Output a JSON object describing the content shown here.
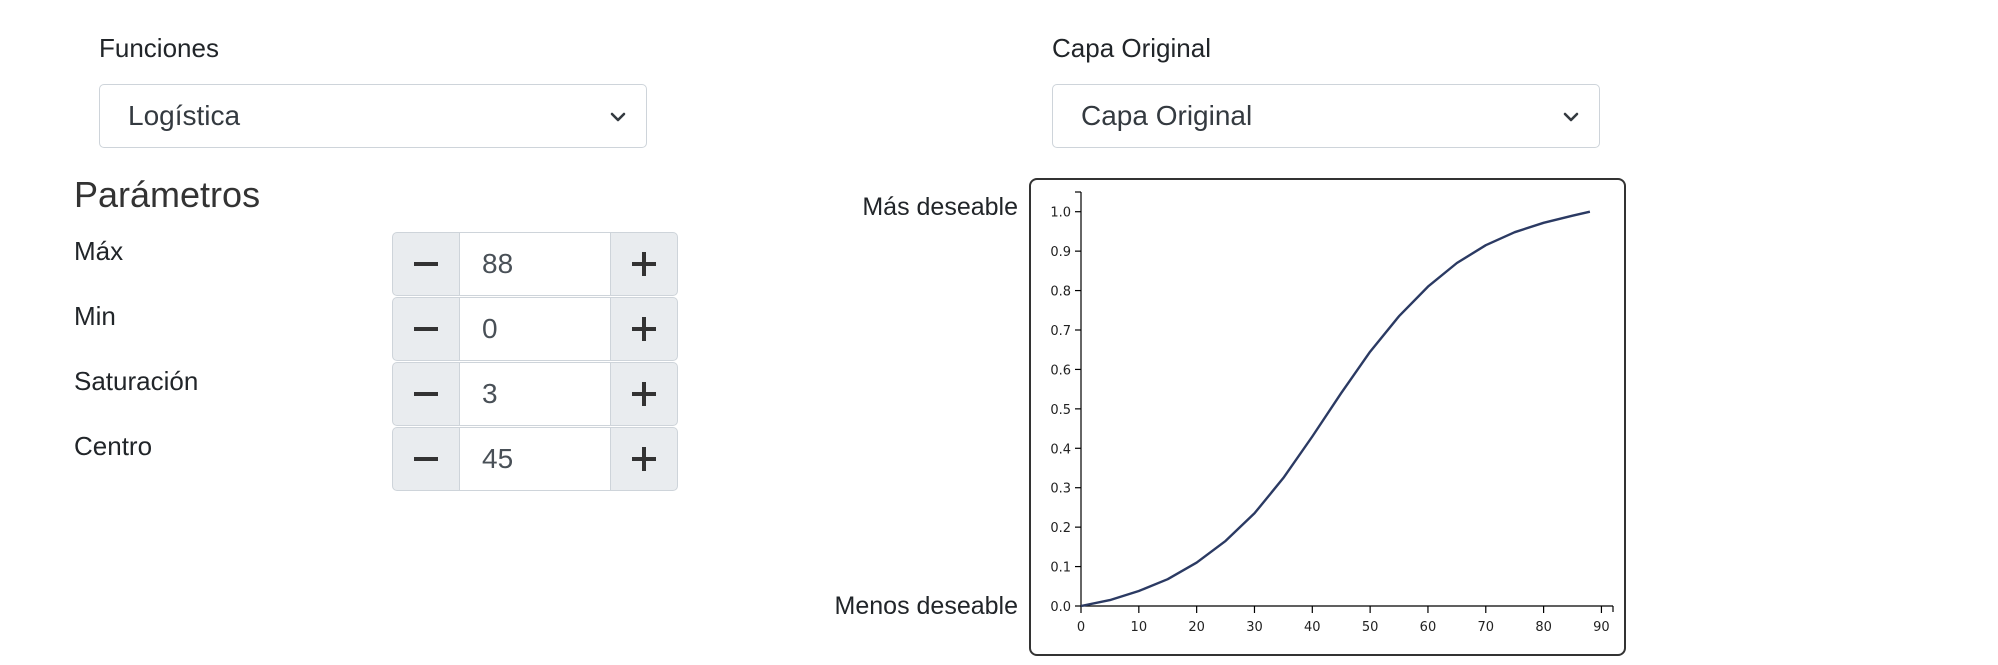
{
  "functions_panel": {
    "label": "Funciones",
    "selected": "Logística"
  },
  "layer_panel": {
    "label": "Capa Original",
    "selected": "Capa Original"
  },
  "parameters": {
    "title": "Parámetros",
    "items": [
      {
        "label": "Máx",
        "value": "88"
      },
      {
        "label": "Min",
        "value": "0"
      },
      {
        "label": "Saturación",
        "value": "3"
      },
      {
        "label": "Centro",
        "value": "45"
      }
    ]
  },
  "chart": {
    "label_top": "Más deseable",
    "label_bottom": "Menos deseable"
  },
  "chart_data": {
    "type": "line",
    "x_ticks": [
      "0",
      "10",
      "20",
      "30",
      "40",
      "50",
      "60",
      "70",
      "80",
      "90"
    ],
    "y_ticks": [
      "0.0",
      "0.1",
      "0.2",
      "0.3",
      "0.4",
      "0.5",
      "0.6",
      "0.7",
      "0.8",
      "0.9",
      "1.0"
    ],
    "xlim": [
      0,
      92
    ],
    "ylim": [
      0,
      1.05
    ],
    "line_color": "#2b3a63",
    "series": [
      {
        "x": [
          0,
          5,
          10,
          15,
          20,
          25,
          30,
          35,
          40,
          45,
          50,
          55,
          60,
          65,
          70,
          75,
          80,
          85,
          88
        ],
        "y": [
          0.0,
          0.015,
          0.038,
          0.068,
          0.11,
          0.165,
          0.235,
          0.325,
          0.43,
          0.54,
          0.645,
          0.735,
          0.81,
          0.87,
          0.915,
          0.948,
          0.972,
          0.99,
          1.0
        ]
      }
    ]
  }
}
